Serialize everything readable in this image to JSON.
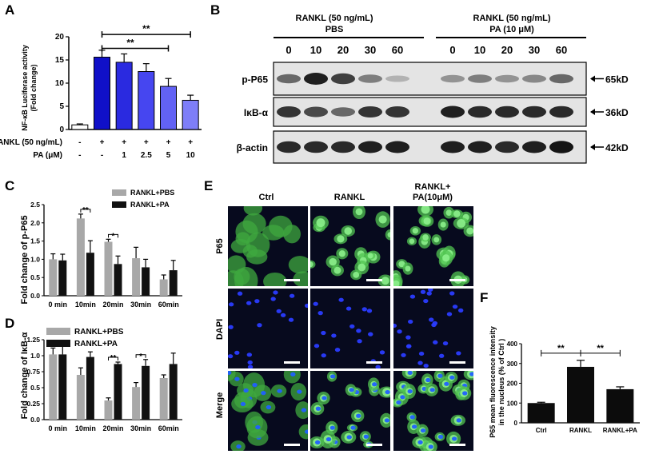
{
  "panels": {
    "A": "A",
    "B": "B",
    "C": "C",
    "D": "D",
    "E": "E",
    "F": "F"
  },
  "panelA": {
    "chart_data": {
      "type": "bar",
      "ylabel": "NF-κB Luciferase activity\n(Fold change)",
      "yticks": [
        0,
        5,
        10,
        15,
        20
      ],
      "ylim": [
        0,
        20
      ],
      "values": [
        1.0,
        15.6,
        14.5,
        12.5,
        9.3,
        6.3
      ],
      "errors": [
        0.2,
        1.5,
        1.8,
        1.7,
        1.7,
        1.1
      ],
      "colors": [
        "#ffffff",
        "#1010c8",
        "#2a2ae0",
        "#4646f0",
        "#6262f4",
        "#7e7ef8"
      ],
      "rows": [
        {
          "label": "RANKL (50 ng/mL)",
          "cells": [
            "-",
            "+",
            "+",
            "+",
            "+",
            "+"
          ]
        },
        {
          "label": "PA (μM)",
          "cells": [
            "-",
            "-",
            "1",
            "2.5",
            "5",
            "10"
          ]
        }
      ],
      "annotations": [
        "**",
        "**"
      ]
    }
  },
  "panelB": {
    "group1": {
      "line1": "RANKL (50 ng/mL)",
      "line2": "PBS"
    },
    "group2": {
      "line1": "RANKL (50 ng/mL)",
      "line2": "PA (10 μM)"
    },
    "times": [
      "0",
      "10",
      "20",
      "30",
      "60",
      "0",
      "10",
      "20",
      "30",
      "60"
    ],
    "bands": [
      {
        "label": "p-P65",
        "mw": "65kD",
        "intensity": [
          0.55,
          0.9,
          0.75,
          0.45,
          0.2,
          0.35,
          0.45,
          0.35,
          0.4,
          0.55
        ]
      },
      {
        "label": "IκB-α",
        "mw": "36kD",
        "intensity": [
          0.8,
          0.7,
          0.55,
          0.8,
          0.8,
          0.9,
          0.85,
          0.85,
          0.85,
          0.85
        ]
      },
      {
        "label": "β-actin",
        "mw": "42kD",
        "intensity": [
          0.85,
          0.85,
          0.85,
          0.9,
          0.9,
          0.9,
          0.9,
          0.85,
          0.9,
          0.95
        ]
      }
    ]
  },
  "panelC": {
    "chart_data": {
      "type": "bar",
      "ylabel": "Fold change of p-P65",
      "categories": [
        "0 min",
        "10min",
        "20min",
        "30min",
        "60min"
      ],
      "yticks": [
        "0.0",
        "0.5",
        "1.0",
        "1.5",
        "2.0",
        "2.5"
      ],
      "ylim": [
        0,
        2.5
      ],
      "series": [
        {
          "name": "RANKL+PBS",
          "color": "#a8a8a8",
          "values": [
            1.0,
            2.12,
            1.48,
            1.03,
            0.45
          ],
          "errors": [
            0.15,
            0.12,
            0.07,
            0.3,
            0.12
          ]
        },
        {
          "name": "RANKL+PA",
          "color": "#111111",
          "values": [
            0.97,
            1.18,
            0.87,
            0.78,
            0.7
          ],
          "errors": [
            0.17,
            0.33,
            0.22,
            0.22,
            0.27
          ]
        }
      ],
      "annotations": [
        {
          "category": "10min",
          "label": "**"
        },
        {
          "category": "20min",
          "label": "*"
        }
      ]
    }
  },
  "panelD": {
    "chart_data": {
      "type": "bar",
      "ylabel": "Fold change of IκB-α",
      "categories": [
        "0 min",
        "10min",
        "20min",
        "30min",
        "60min"
      ],
      "yticks": [
        "0.0",
        "0.25",
        "0.5",
        "0.75",
        "1.0",
        "1.25"
      ],
      "ylim": [
        0,
        1.25
      ],
      "series": [
        {
          "name": "RANKL+PBS",
          "color": "#a8a8a8",
          "values": [
            1.02,
            0.7,
            0.3,
            0.51,
            0.65
          ],
          "errors": [
            0.1,
            0.11,
            0.04,
            0.07,
            0.05
          ]
        },
        {
          "name": "RANKL+PA",
          "color": "#111111",
          "values": [
            1.02,
            0.98,
            0.87,
            0.84,
            0.87
          ],
          "errors": [
            0.2,
            0.08,
            0.03,
            0.1,
            0.17
          ]
        }
      ],
      "annotations": [
        {
          "category": "20min",
          "label": "**"
        },
        {
          "category": "30min",
          "label": "*"
        }
      ]
    }
  },
  "panelE": {
    "columns": [
      "Ctrl",
      "RANKL",
      "RANKL+\nPA(10μM)"
    ],
    "rows": [
      "P65",
      "DAPI",
      "Merge"
    ]
  },
  "panelF": {
    "chart_data": {
      "type": "bar",
      "ylabel": "P65 mean fluorescence intensity\nin the nucleus (% of Ctrl )",
      "categories": [
        "Ctrl",
        "RANKL",
        "RANKL+PA"
      ],
      "values": [
        100,
        283,
        170
      ],
      "errors": [
        4,
        33,
        12
      ],
      "yticks": [
        0,
        100,
        200,
        300,
        400
      ],
      "ylim": [
        0,
        400
      ],
      "annotations": [
        "**",
        "**"
      ]
    }
  }
}
